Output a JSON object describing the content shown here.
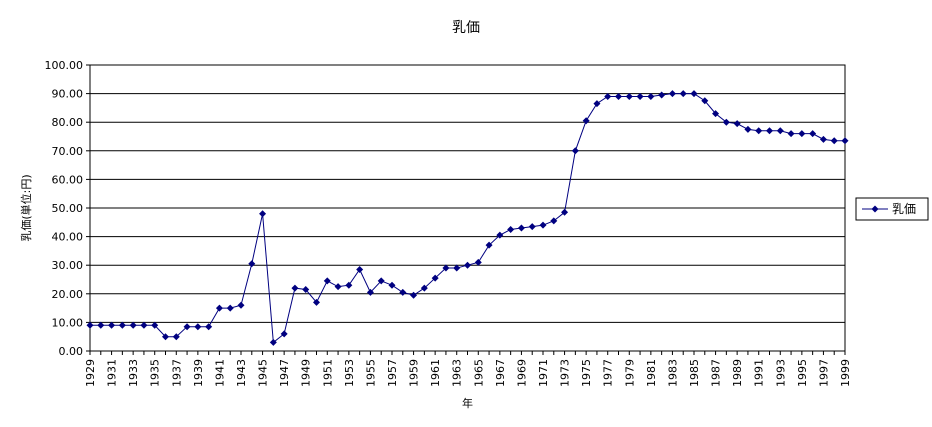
{
  "chart_data": {
    "type": "line",
    "title": "乳価",
    "xlabel": "年",
    "ylabel": "乳価(単位:円)",
    "ylim": [
      0,
      100
    ],
    "yticks": [
      "0.00",
      "10.00",
      "20.00",
      "30.00",
      "40.00",
      "50.00",
      "60.00",
      "70.00",
      "80.00",
      "90.00",
      "100.00"
    ],
    "grid": true,
    "legend_position": "right",
    "line_color": "#000080",
    "x": [
      1929,
      1930,
      1931,
      1932,
      1933,
      1934,
      1935,
      1936,
      1937,
      1938,
      1939,
      1940,
      1941,
      1942,
      1943,
      1944,
      1945,
      1946,
      1947,
      1948,
      1949,
      1950,
      1951,
      1952,
      1953,
      1954,
      1955,
      1956,
      1957,
      1958,
      1959,
      1960,
      1961,
      1962,
      1963,
      1964,
      1965,
      1966,
      1967,
      1968,
      1969,
      1970,
      1971,
      1972,
      1973,
      1974,
      1975,
      1976,
      1977,
      1978,
      1979,
      1980,
      1981,
      1982,
      1983,
      1984,
      1985,
      1986,
      1987,
      1988,
      1989,
      1990,
      1991,
      1992,
      1993,
      1994,
      1995,
      1996,
      1997,
      1998,
      1999
    ],
    "xtick_labels": [
      "1929",
      "1931",
      "1933",
      "1935",
      "1937",
      "1939",
      "1941",
      "1943",
      "1945",
      "1947",
      "1949",
      "1951",
      "1953",
      "1955",
      "1957",
      "1959",
      "1961",
      "1963",
      "1965",
      "1967",
      "1969",
      "1971",
      "1973",
      "1975",
      "1977",
      "1979",
      "1981",
      "1983",
      "1985",
      "1987",
      "1989",
      "1991",
      "1993",
      "1995",
      "1997",
      "1999"
    ],
    "series": [
      {
        "name": "乳価",
        "values": [
          9,
          9,
          9,
          9,
          9,
          9,
          9,
          5,
          5,
          8.5,
          8.5,
          8.5,
          15,
          15,
          16,
          30.5,
          48,
          3,
          6,
          22,
          21.5,
          17,
          24.5,
          22.5,
          23,
          28.5,
          20.5,
          24.5,
          23,
          20.5,
          19.5,
          22,
          25.5,
          29,
          29,
          30,
          31,
          37,
          40.5,
          42.5,
          43,
          43.5,
          44,
          45.5,
          48.5,
          70,
          80.5,
          86.5,
          89,
          89,
          89,
          89,
          89,
          89.5,
          90,
          90,
          90,
          87.5,
          83,
          80,
          79.5,
          77.5,
          77,
          77,
          77,
          76,
          76,
          76,
          74,
          73.5,
          73.5
        ]
      }
    ]
  }
}
